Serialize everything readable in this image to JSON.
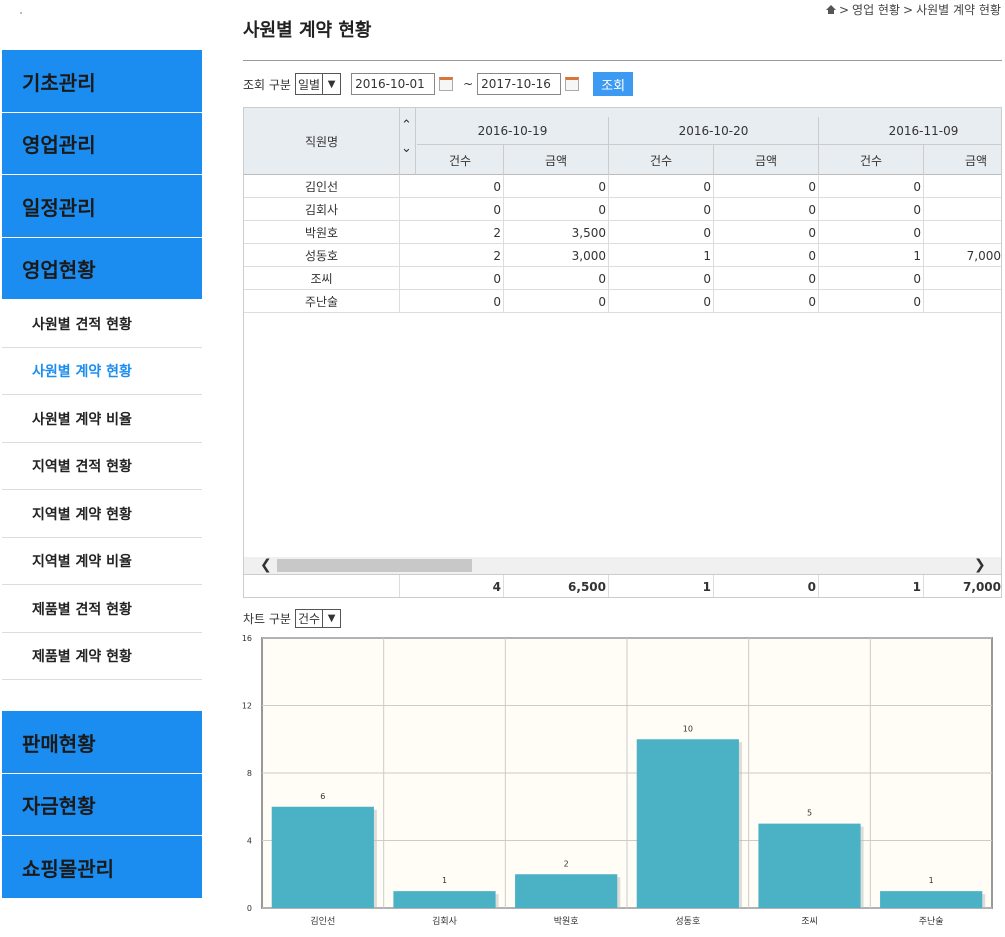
{
  "sidebar": {
    "main_top": [
      "기초관리",
      "영업관리",
      "일정관리",
      "영업현황"
    ],
    "sub_items": [
      "사원별 견적 현황",
      "사원별 계약 현황",
      "사원별 계약 비율",
      "지역별 견적 현황",
      "지역별 계약 현황",
      "지역별 계약 비율",
      "제품별 견적 현황",
      "제품별 계약 현황"
    ],
    "active_sub": "사원별 계약 현황",
    "main_bottom": [
      "판매현황",
      "자금현황",
      "쇼핑몰관리"
    ]
  },
  "page": {
    "title": "사원별 계약 현황",
    "breadcrumb": [
      "영업 현황",
      "사원별 계약 현황"
    ]
  },
  "filter": {
    "label": "조회 구분",
    "select_value": "일별",
    "start_date": "2016-10-01",
    "tilde": "~",
    "end_date": "2017-10-16",
    "search_button": "조회"
  },
  "grid": {
    "name_header": "직원명",
    "dates": [
      "2016-10-19",
      "2016-10-20",
      "2016-11-09"
    ],
    "sub_headers": [
      "건수",
      "금액",
      "건수",
      "금액",
      "건수",
      "금액"
    ],
    "rows": [
      {
        "name": "김인선",
        "values": [
          "0",
          "0",
          "0",
          "0",
          "0",
          ""
        ]
      },
      {
        "name": "김회사",
        "values": [
          "0",
          "0",
          "0",
          "0",
          "0",
          ""
        ]
      },
      {
        "name": "박원호",
        "values": [
          "2",
          "3,500",
          "0",
          "0",
          "0",
          ""
        ]
      },
      {
        "name": "성동호",
        "values": [
          "2",
          "3,000",
          "1",
          "0",
          "1",
          "7,000"
        ]
      },
      {
        "name": "조씨",
        "values": [
          "0",
          "0",
          "0",
          "0",
          "0",
          ""
        ]
      },
      {
        "name": "주난술",
        "values": [
          "0",
          "0",
          "0",
          "0",
          "0",
          ""
        ]
      }
    ],
    "totals": [
      "4",
      "6,500",
      "1",
      "0",
      "1",
      "7,000"
    ]
  },
  "chart_filter": {
    "label": "차트 구분",
    "select_value": "건수"
  },
  "chart_data": {
    "type": "bar",
    "categories": [
      "김인선",
      "김회사",
      "박원호",
      "성동호",
      "조씨",
      "주난술"
    ],
    "values": [
      6,
      1,
      2,
      10,
      5,
      1
    ],
    "ylim": [
      0,
      16
    ],
    "yticks": [
      0,
      4,
      8,
      12,
      16
    ],
    "title": "",
    "xlabel": "",
    "ylabel": "",
    "grid": true,
    "colors": {
      "bar": "#4bb2c5",
      "plot_bg": "#fffdf6"
    }
  }
}
